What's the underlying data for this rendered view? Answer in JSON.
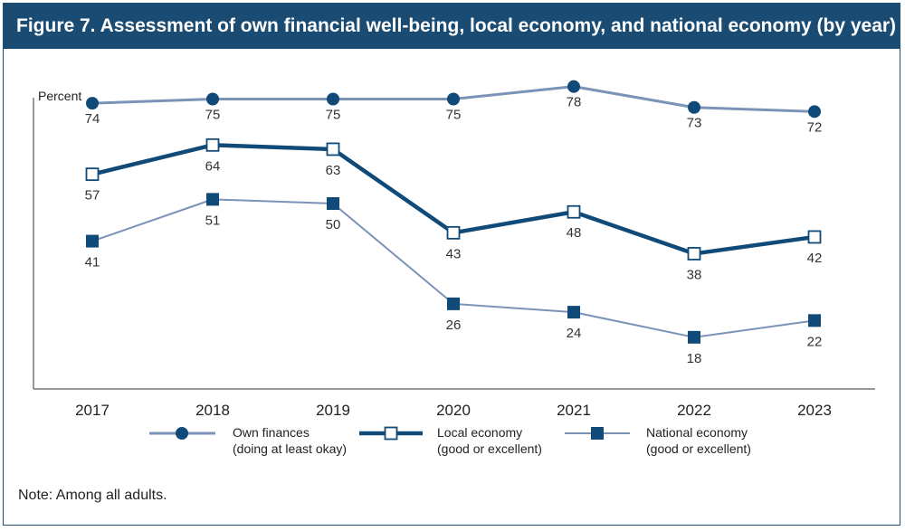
{
  "figure": {
    "title": "Figure 7. Assessment of own financial well-being, local economy, and national economy (by year)",
    "note": "Note: Among all adults."
  },
  "colors": {
    "header": "#1a4b73",
    "own": "#7b93b8",
    "local": "#104a78",
    "national": "#7b93b8",
    "national_marker": "#104a78"
  },
  "chart_data": {
    "type": "line",
    "title": "Figure 7. Assessment of own financial well-being, local economy, and national economy (by year)",
    "ylabel": "Percent",
    "xlabel": "",
    "categories": [
      "2017",
      "2018",
      "2019",
      "2020",
      "2021",
      "2022",
      "2023"
    ],
    "ylim": [
      0,
      100
    ],
    "grid": false,
    "legend_position": "bottom",
    "series": [
      {
        "name": "Own finances",
        "name_line2": "(doing at least okay)",
        "marker": "circle-filled",
        "values": [
          74,
          75,
          75,
          75,
          78,
          73,
          72
        ]
      },
      {
        "name": "Local economy",
        "name_line2": "(good or excellent)",
        "marker": "square-open",
        "values": [
          57,
          64,
          63,
          43,
          48,
          38,
          42
        ]
      },
      {
        "name": "National economy",
        "name_line2": "(good or excellent)",
        "marker": "square-filled",
        "values": [
          41,
          51,
          50,
          26,
          24,
          18,
          22
        ]
      }
    ]
  }
}
